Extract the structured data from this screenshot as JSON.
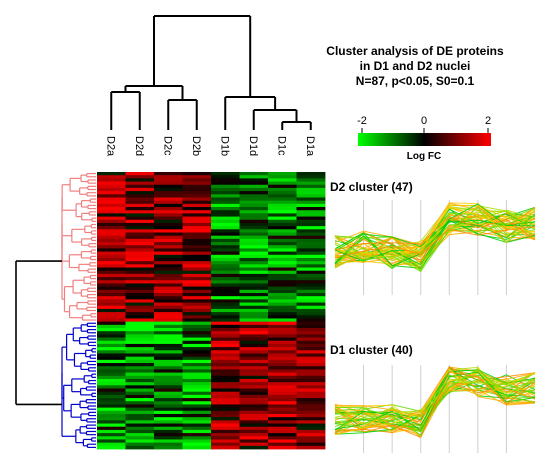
{
  "title": {
    "line1": "Cluster analysis of DE proteins",
    "line2": "in D1 and D2 nuclei",
    "line3": "N=87, p<0.05, S0=0.1"
  },
  "legend": {
    "label": "Log FC",
    "ticks": [
      "-2",
      "0",
      "2"
    ],
    "range": [
      -2,
      2
    ],
    "colors": {
      "low": "#00ff00",
      "mid": "#000000",
      "high": "#ff0000"
    }
  },
  "samples": [
    "D2a",
    "D2d",
    "D2c",
    "D2b",
    "D1b",
    "D1d",
    "D1c",
    "D1a"
  ],
  "clusters": [
    {
      "label": "D2 cluster (47)",
      "row_count": 47,
      "dendrogram_color": "#f08080"
    },
    {
      "label": "D1 cluster (40)",
      "row_count": 40,
      "dendrogram_color": "#0000cc"
    }
  ],
  "profile_colors": [
    "#00cc00",
    "#66dd00",
    "#aadd00",
    "#ffcc00",
    "#ffaa00",
    "#ff8800"
  ]
}
